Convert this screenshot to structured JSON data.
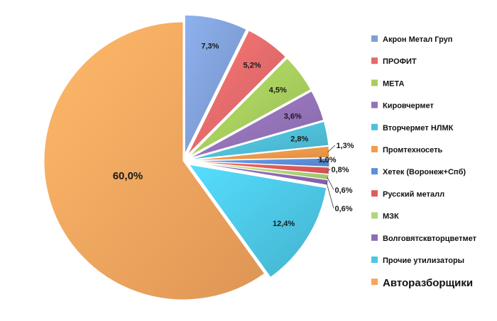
{
  "chart_data": {
    "type": "pie",
    "title": "",
    "legend_position": "right",
    "slices": [
      {
        "name": "Акрон Метал Груп",
        "value": 7.3,
        "label": "7,3%",
        "color": "#7f9fd6"
      },
      {
        "name": "ПРОФИТ",
        "value": 5.2,
        "label": "5,2%",
        "color": "#e36b6b"
      },
      {
        "name": "МЕТА",
        "value": 4.5,
        "label": "4,5%",
        "color": "#a8cd5e"
      },
      {
        "name": "Кировчермет",
        "value": 3.6,
        "label": "3,6%",
        "color": "#9472b8"
      },
      {
        "name": "Вторчермет НЛМК",
        "value": 2.8,
        "label": "2,8%",
        "color": "#4fbfd9"
      },
      {
        "name": "Промтехносеть",
        "value": 1.3,
        "label": "1,3%",
        "color": "#f59a4a"
      },
      {
        "name": "Хетек (Воронеж+Спб)",
        "value": 1.0,
        "label": "1,0%",
        "color": "#5b8fd9"
      },
      {
        "name": "Русский металл",
        "value": 0.8,
        "label": "0,8%",
        "color": "#e05a5a"
      },
      {
        "name": "МЗК",
        "value": 0.6,
        "label": "0,6%",
        "color": "#b2d67a"
      },
      {
        "name": "Волговятсквторцветмет",
        "value": 0.6,
        "label": "0,6%",
        "color": "#8e6bb5"
      },
      {
        "name": "Прочие утилизаторы",
        "value": 12.4,
        "label": "12,4%",
        "color": "#4cc6e4"
      },
      {
        "name": "Авторазборщики",
        "value": 60.0,
        "label": "60,0%",
        "color": "#f7a55e"
      }
    ]
  }
}
